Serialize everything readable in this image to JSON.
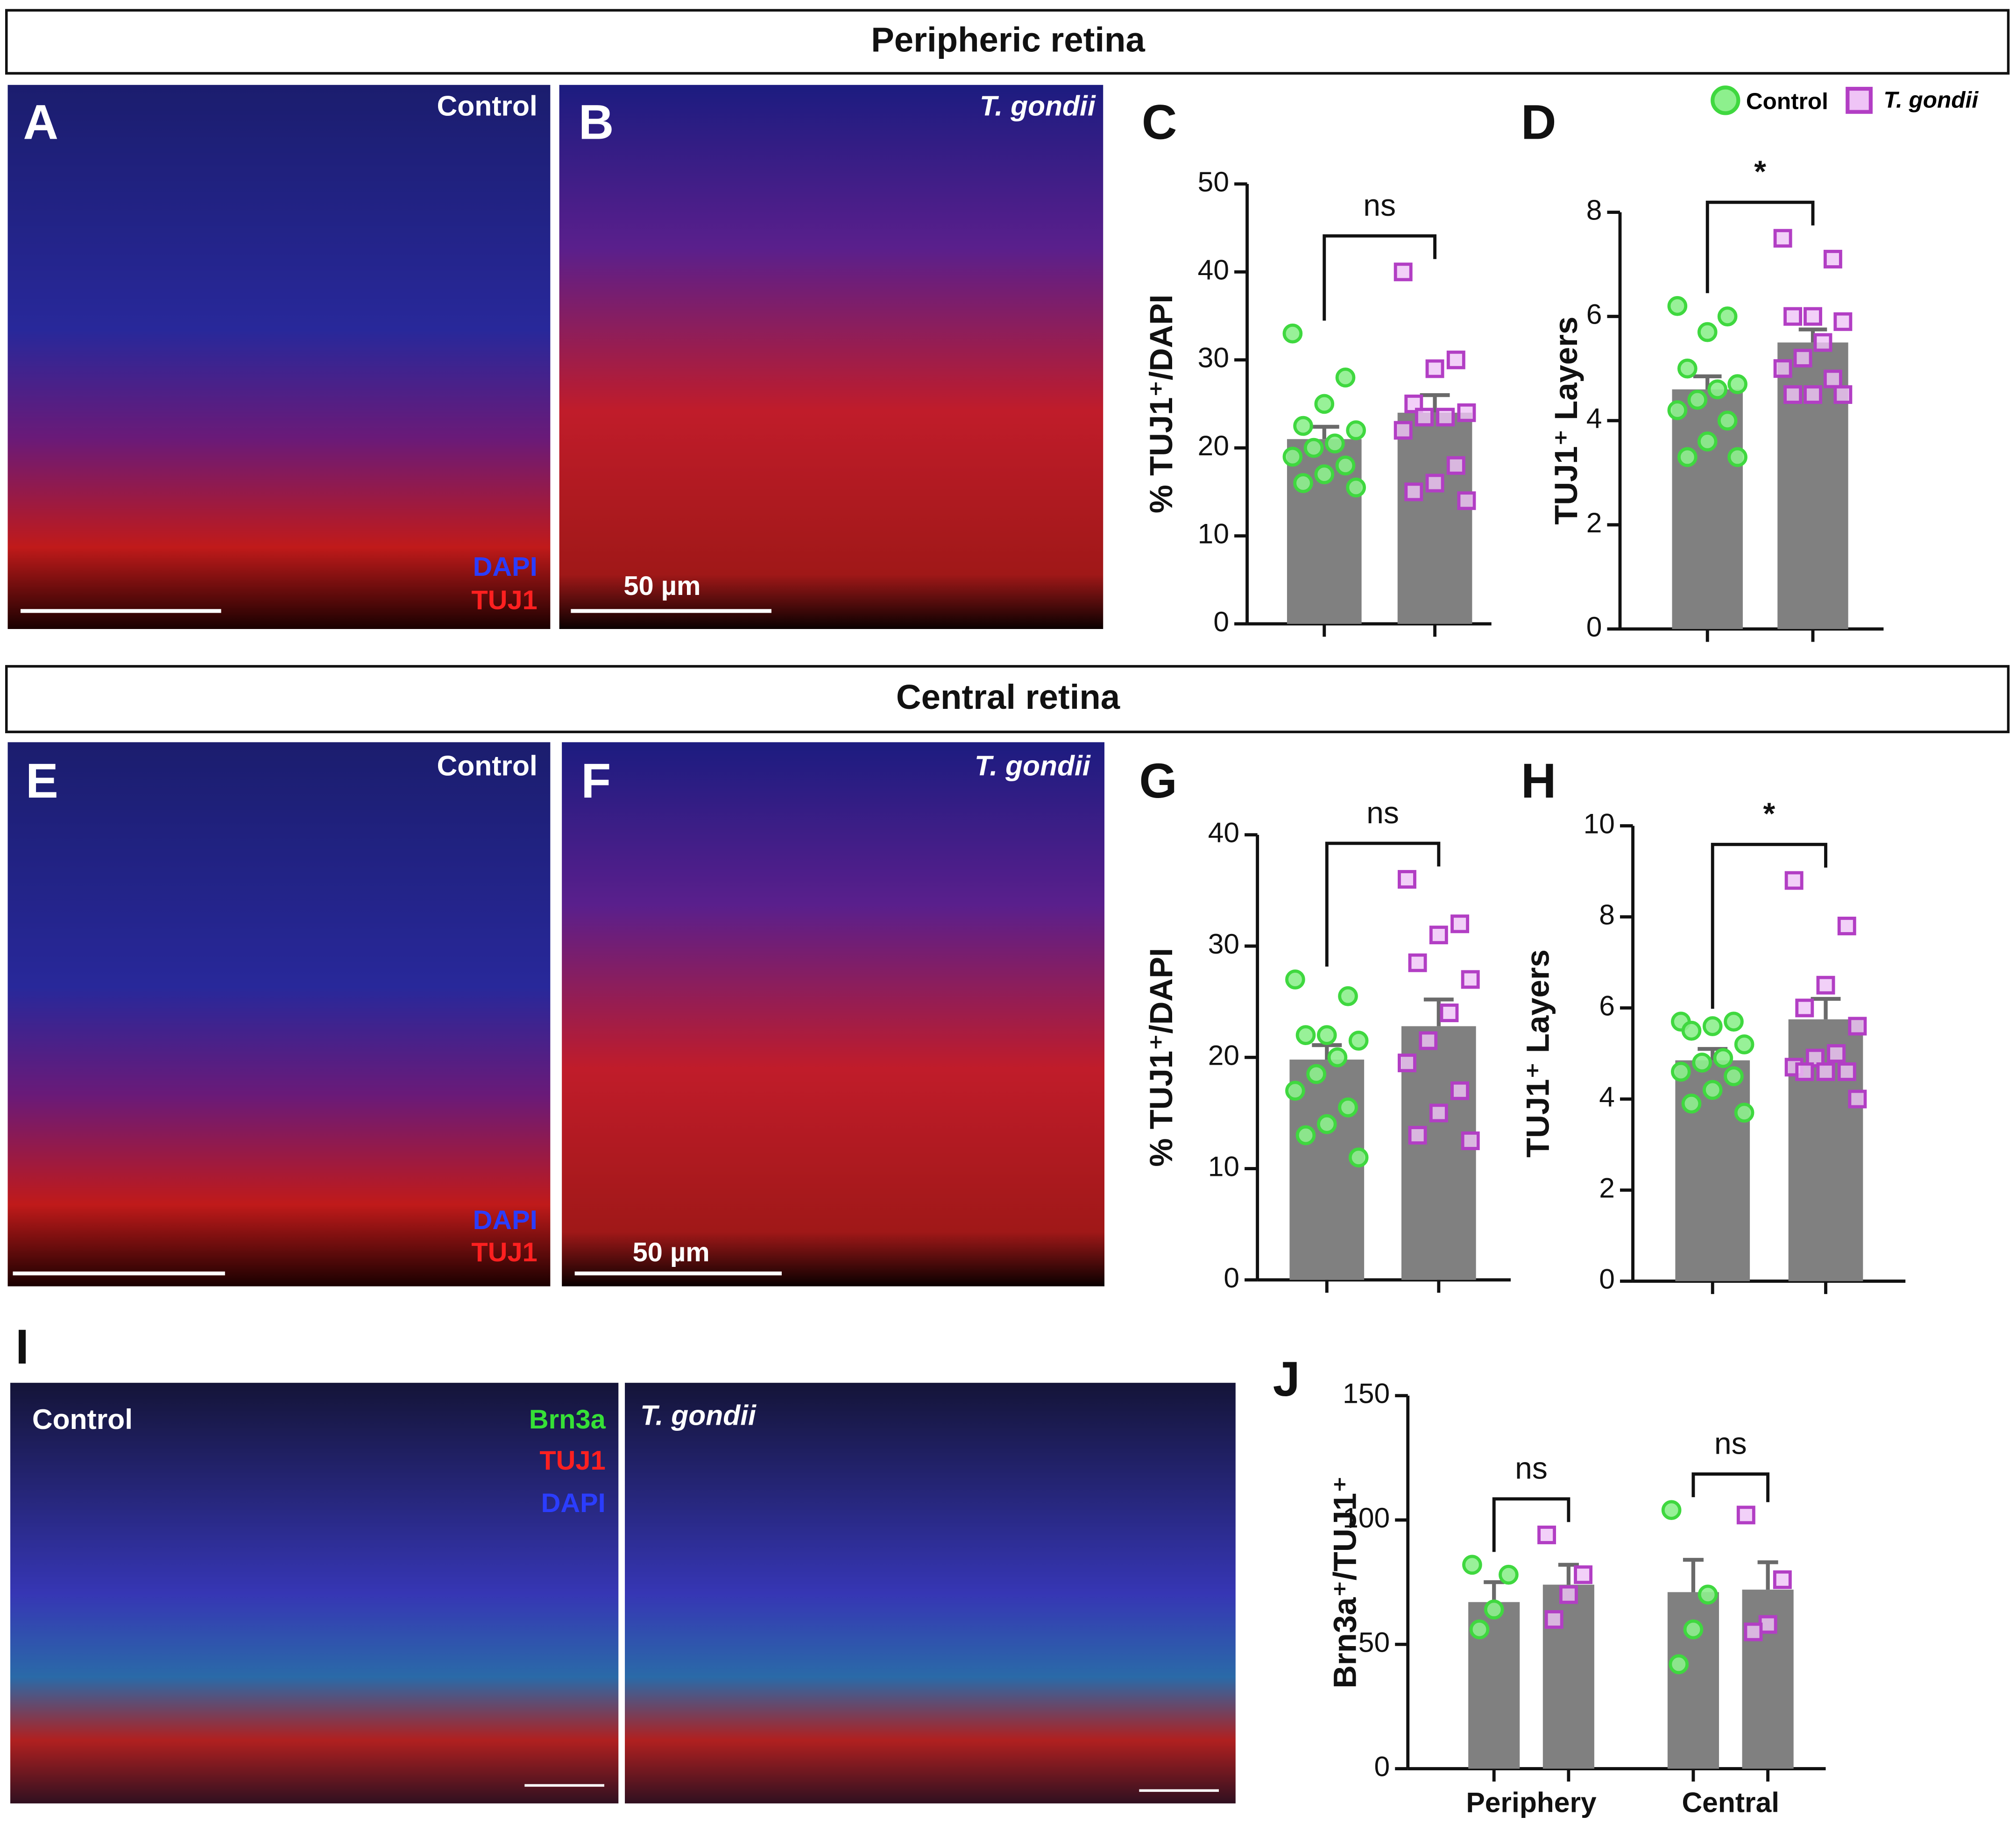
{
  "sections": [
    "Peripheric retina",
    "Central retina"
  ],
  "legend": [
    {
      "name": "Control",
      "marker": "circle",
      "color": "#3fd83f",
      "fill": "#8df08d"
    },
    {
      "name": "T. gondii",
      "marker": "square",
      "color": "#b23ec4",
      "fill": "#efc4f6"
    }
  ],
  "panels": [
    {
      "letter": "A",
      "condition": "Control",
      "stains": [
        "DAPI",
        "TUJ1"
      ]
    },
    {
      "letter": "B",
      "condition": "T. gondii",
      "scale": "50 µm"
    },
    {
      "letter": "E",
      "condition": "Control",
      "stains": [
        "DAPI",
        "TUJ1"
      ]
    },
    {
      "letter": "F",
      "condition": "T. gondii",
      "scale": "50 µm"
    },
    {
      "letter": "I",
      "images": [
        {
          "condition": "Control",
          "stains": [
            "Brn3a",
            "TUJ1",
            "DAPI"
          ]
        },
        {
          "condition": "T. gondii"
        }
      ]
    }
  ],
  "chart_data": [
    {
      "type": "bar",
      "panel": "C",
      "ylabel": "% TUJ1⁺/DAPI",
      "bar_color": "#808080",
      "ylim": [
        0,
        50
      ],
      "yticks": [
        0,
        10,
        20,
        30,
        40,
        50
      ],
      "categories": [
        null
      ],
      "annotations": [
        "ns"
      ],
      "series": [
        {
          "values": [
            21
          ],
          "errors": [
            1.4
          ],
          "points": [
            [
              33,
              28,
              25,
              22.5,
              22,
              20.5,
              20,
              19,
              18,
              17,
              16,
              15.5
            ]
          ]
        },
        {
          "values": [
            24
          ],
          "errors": [
            2
          ],
          "points": [
            [
              40,
              30,
              29,
              25,
              24,
              23.5,
              23.5,
              22,
              18,
              16,
              15,
              14
            ]
          ]
        }
      ]
    },
    {
      "type": "bar",
      "panel": "D",
      "ylabel": "TUJ1⁺ Layers",
      "bar_color": "#808080",
      "ylim": [
        0,
        8
      ],
      "yticks": [
        0,
        2,
        4,
        6,
        8
      ],
      "categories": [
        null
      ],
      "annotations": [
        "*"
      ],
      "series": [
        {
          "values": [
            4.6
          ],
          "errors": [
            0.25
          ],
          "points": [
            [
              6.2,
              6,
              5.7,
              5,
              4.7,
              4.6,
              4.4,
              4.2,
              4,
              3.6,
              3.3,
              3.3
            ]
          ]
        },
        {
          "values": [
            5.5
          ],
          "errors": [
            0.25
          ],
          "points": [
            [
              7.5,
              7.1,
              6,
              6,
              5.9,
              5.5,
              5.2,
              5,
              4.8,
              4.5,
              4.5,
              4.5
            ]
          ]
        }
      ]
    },
    {
      "type": "bar",
      "panel": "G",
      "ylabel": "% TUJ1⁺/DAPI",
      "bar_color": "#808080",
      "ylim": [
        0,
        40
      ],
      "yticks": [
        0,
        10,
        20,
        30,
        40
      ],
      "categories": [
        null
      ],
      "annotations": [
        "ns"
      ],
      "series": [
        {
          "values": [
            19.8
          ],
          "errors": [
            1.3
          ],
          "points": [
            [
              27,
              25.5,
              22,
              22,
              21.5,
              20,
              18.5,
              17,
              15.5,
              14,
              13,
              11
            ]
          ]
        },
        {
          "values": [
            22.8
          ],
          "errors": [
            2.4
          ],
          "points": [
            [
              36,
              32,
              31,
              28.5,
              27,
              24,
              21.5,
              19.5,
              17,
              15,
              13,
              12.5
            ]
          ]
        }
      ]
    },
    {
      "type": "bar",
      "panel": "H",
      "ylabel": "TUJ1⁺ Layers",
      "bar_color": "#808080",
      "ylim": [
        0,
        10
      ],
      "yticks": [
        0,
        2,
        4,
        6,
        8,
        10
      ],
      "categories": [
        null
      ],
      "annotations": [
        "*"
      ],
      "series": [
        {
          "values": [
            4.85
          ],
          "errors": [
            0.25
          ],
          "points": [
            [
              5.7,
              5.7,
              5.6,
              5.5,
              5.2,
              4.9,
              4.8,
              4.6,
              4.5,
              4.2,
              3.9,
              3.7
            ]
          ]
        },
        {
          "values": [
            5.75
          ],
          "errors": [
            0.45
          ],
          "points": [
            [
              8.8,
              7.8,
              6.5,
              6,
              5.6,
              5,
              4.9,
              4.7,
              4.6,
              4.6,
              4.6,
              4
            ]
          ]
        }
      ]
    },
    {
      "type": "bar",
      "panel": "J",
      "ylabel": "Brn3a⁺/TUJ1⁺",
      "bar_color": "#808080",
      "ylim": [
        0,
        150
      ],
      "yticks": [
        0,
        50,
        100,
        150
      ],
      "categories": [
        "Periphery",
        "Central"
      ],
      "annotations": [
        "ns",
        "ns"
      ],
      "series": [
        {
          "values": [
            67,
            71
          ],
          "errors": [
            8,
            13
          ],
          "points": [
            [
              82,
              78,
              64,
              56
            ],
            [
              104,
              70,
              56,
              42
            ]
          ]
        },
        {
          "values": [
            74,
            72
          ],
          "errors": [
            8,
            11
          ],
          "points": [
            [
              94,
              78,
              70,
              60
            ],
            [
              102,
              76,
              58,
              55
            ]
          ]
        }
      ]
    }
  ]
}
